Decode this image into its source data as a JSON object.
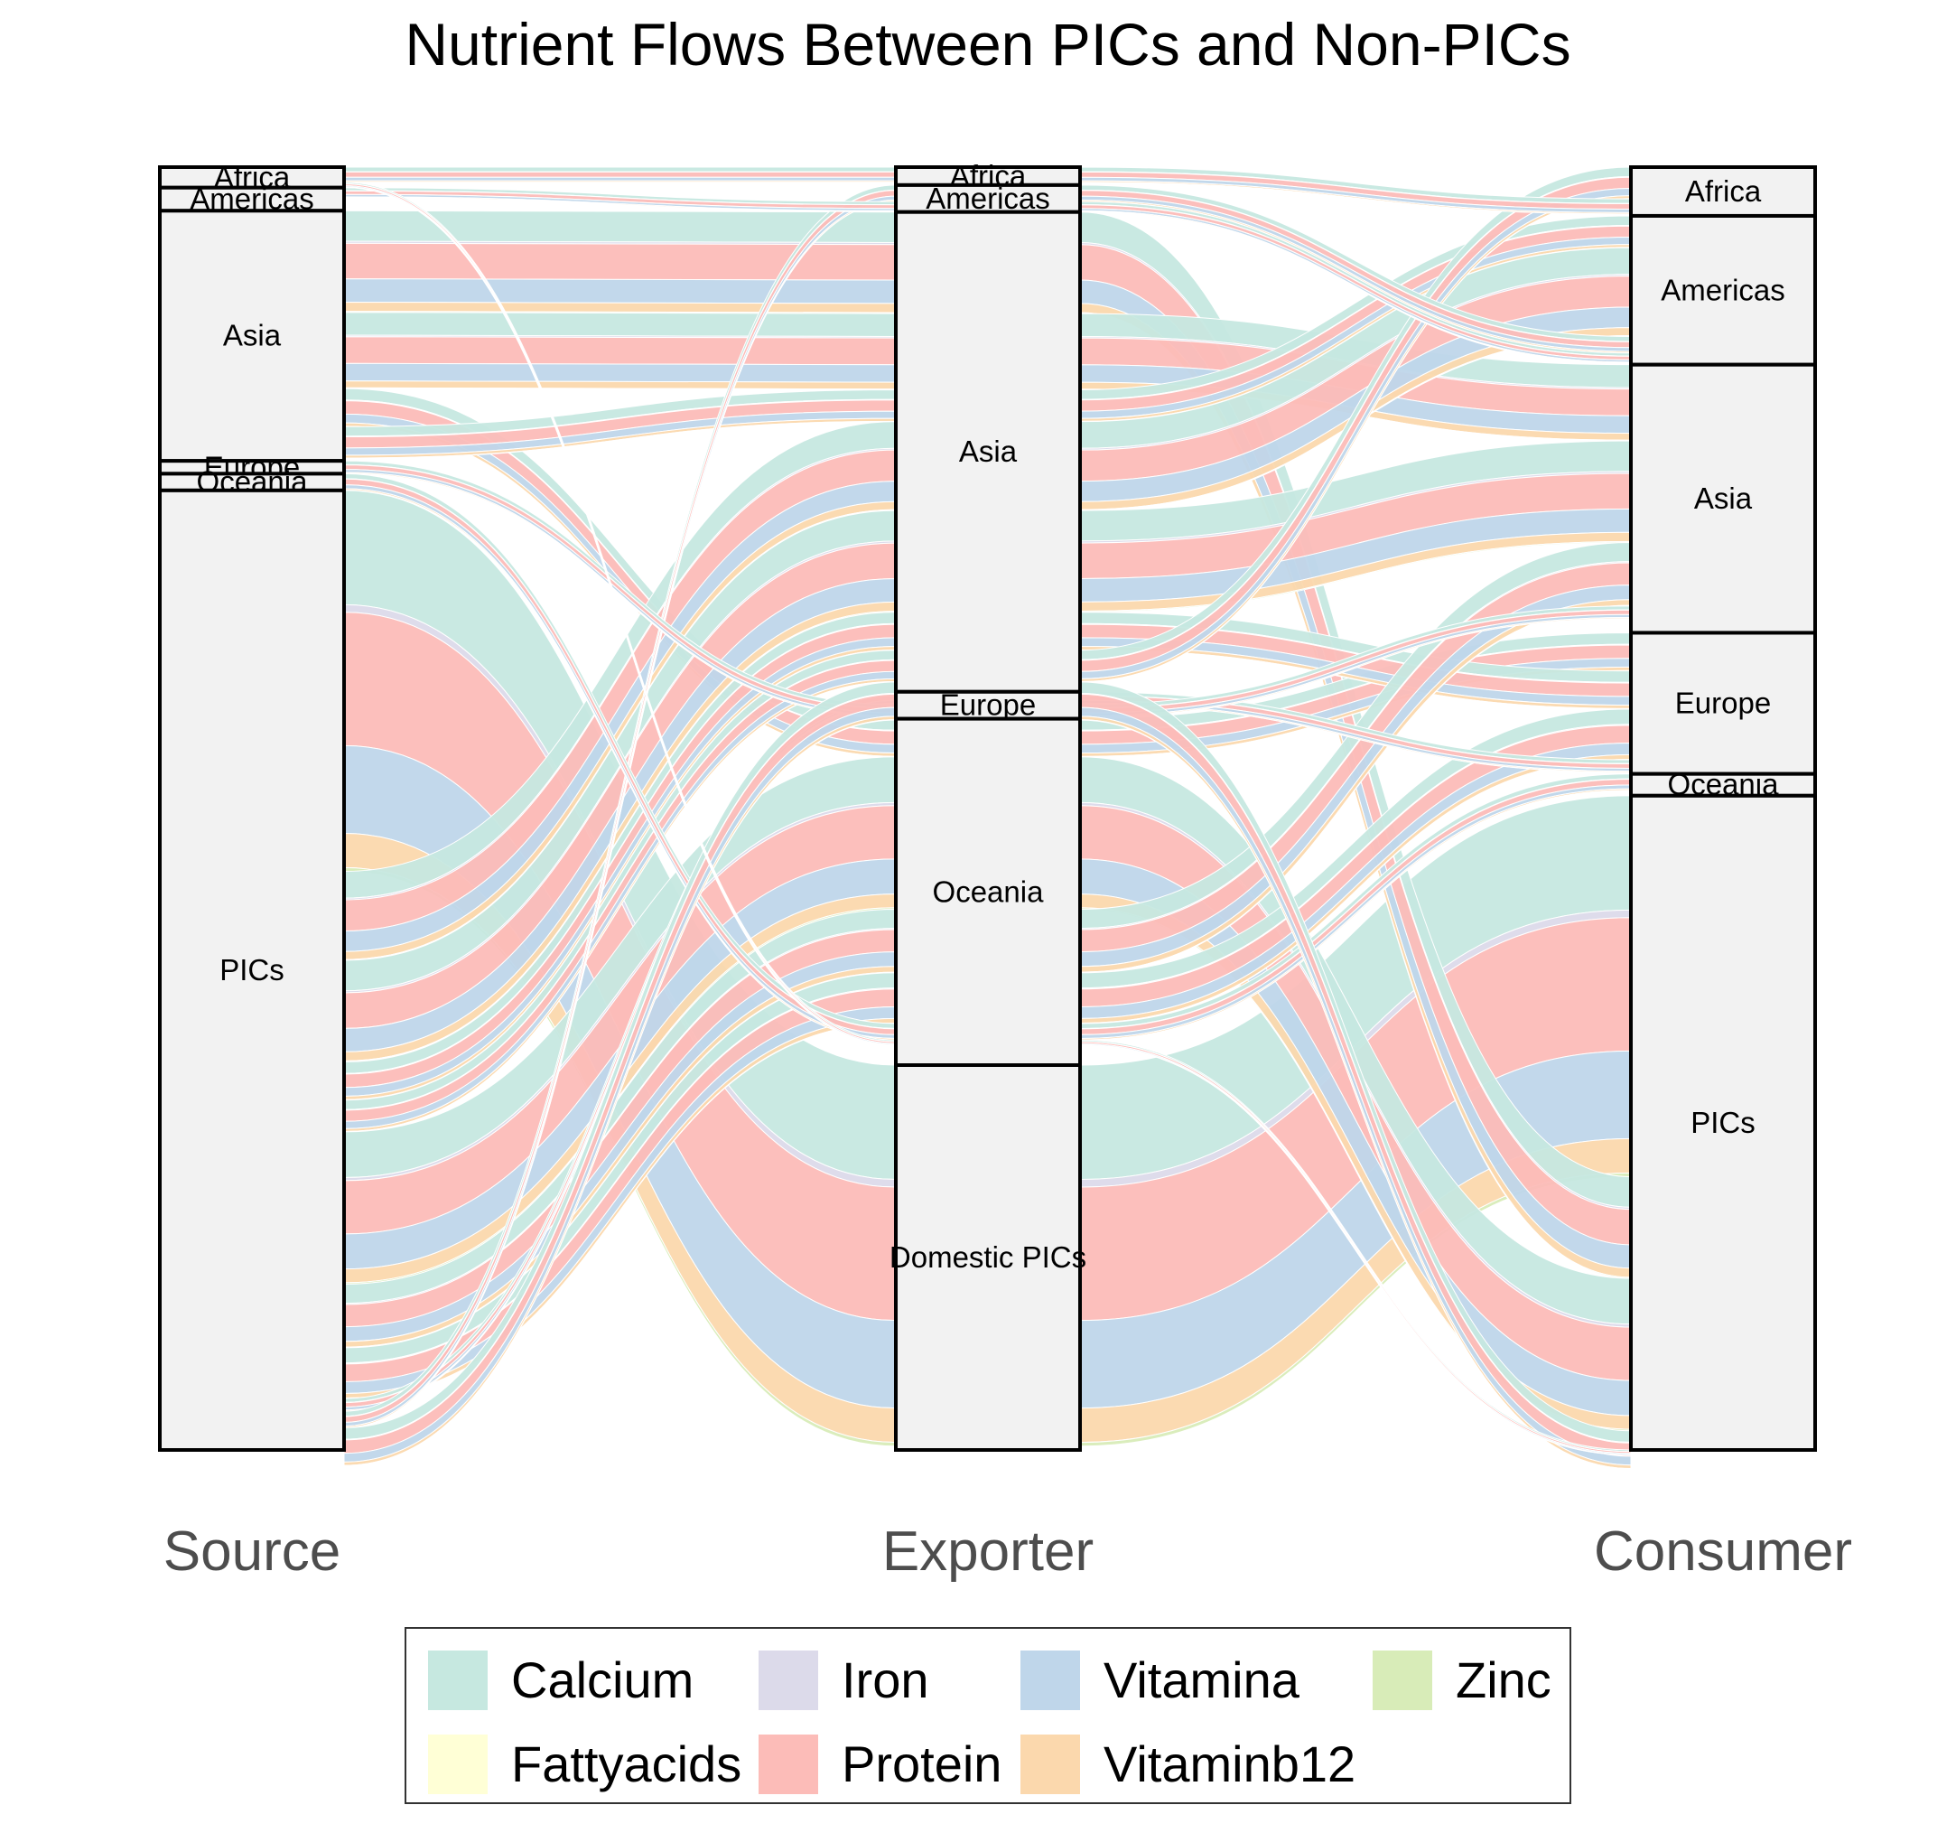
{
  "chart_data": {
    "type": "alluvial",
    "title": "Nutrient Flows Between PICs and Non-PICs",
    "axes": [
      "Source",
      "Exporter",
      "Consumer"
    ],
    "nutrients": [
      "Calcium",
      "Fattyacids",
      "Iron",
      "Protein",
      "Vitamina",
      "Vitaminb12",
      "Zinc"
    ],
    "colors": {
      "Calcium": "#c6e8e0",
      "Fattyacids": "#ffffd6",
      "Iron": "#dcdaea",
      "Protein": "#fcbcb8",
      "Vitamina": "#bfd6ea",
      "Vitaminb12": "#fbd8ad",
      "Zinc": "#d8ecb8"
    },
    "stratum_shares": {
      "Source": [
        {
          "label": "Africa",
          "share": 0.016
        },
        {
          "label": "Americas",
          "share": 0.018
        },
        {
          "label": "Asia",
          "share": 0.195
        },
        {
          "label": "Europe",
          "share": 0.01
        },
        {
          "label": "Oceania",
          "share": 0.013
        },
        {
          "label": "PICs",
          "share": 0.748
        }
      ],
      "Exporter": [
        {
          "label": "Africa",
          "share": 0.014
        },
        {
          "label": "Americas",
          "share": 0.021
        },
        {
          "label": "Asia",
          "share": 0.374
        },
        {
          "label": "Europe",
          "share": 0.021
        },
        {
          "label": "Oceania",
          "share": 0.27
        },
        {
          "label": "Domestic PICs",
          "share": 0.3
        }
      ],
      "Consumer": [
        {
          "label": "Africa",
          "share": 0.038
        },
        {
          "label": "Americas",
          "share": 0.116
        },
        {
          "label": "Asia",
          "share": 0.209
        },
        {
          "label": "Europe",
          "share": 0.11
        },
        {
          "label": "Oceania",
          "share": 0.017
        },
        {
          "label": "PICs",
          "share": 0.51
        }
      ]
    },
    "flow_shares": [
      {
        "source": "PICs",
        "exporter": "Domestic PICs",
        "consumer": "PICs",
        "share": 0.3
      },
      {
        "source": "Asia",
        "exporter": "Asia",
        "consumer": "PICs",
        "share": 0.08
      },
      {
        "source": "Asia",
        "exporter": "Asia",
        "consumer": "Asia",
        "share": 0.06
      },
      {
        "source": "Asia",
        "exporter": "Oceania",
        "consumer": "Europe",
        "share": 0.03
      },
      {
        "source": "Asia",
        "exporter": "Asia",
        "consumer": "Americas",
        "share": 0.025
      },
      {
        "source": "PICs",
        "exporter": "Asia",
        "consumer": "Americas",
        "share": 0.07
      },
      {
        "source": "PICs",
        "exporter": "Asia",
        "consumer": "Asia",
        "share": 0.08
      },
      {
        "source": "PICs",
        "exporter": "Asia",
        "consumer": "Europe",
        "share": 0.03
      },
      {
        "source": "PICs",
        "exporter": "Asia",
        "consumer": "Africa",
        "share": 0.025
      },
      {
        "source": "PICs",
        "exporter": "Oceania",
        "consumer": "PICs",
        "share": 0.12
      },
      {
        "source": "PICs",
        "exporter": "Oceania",
        "consumer": "Asia",
        "share": 0.05
      },
      {
        "source": "PICs",
        "exporter": "Oceania",
        "consumer": "Europe",
        "share": 0.04
      },
      {
        "source": "PICs",
        "exporter": "Europe",
        "consumer": "Europe",
        "share": 0.01
      },
      {
        "source": "PICs",
        "exporter": "Americas",
        "consumer": "Americas",
        "share": 0.013
      },
      {
        "source": "Africa",
        "exporter": "Africa",
        "consumer": "Africa",
        "share": 0.012
      },
      {
        "source": "Americas",
        "exporter": "Americas",
        "consumer": "Americas",
        "share": 0.008
      },
      {
        "source": "Europe",
        "exporter": "Europe",
        "consumer": "Asia",
        "share": 0.01
      },
      {
        "source": "Oceania",
        "exporter": "Oceania",
        "consumer": "Oceania",
        "share": 0.013
      },
      {
        "source": "PICs",
        "exporter": "Asia",
        "consumer": "PICs",
        "share": 0.03
      },
      {
        "source": "Africa",
        "exporter": "Oceania",
        "consumer": "PICs",
        "share": 0.004
      }
    ],
    "nutrient_mix": [
      {
        "name": "Calcium",
        "share": 0.3
      },
      {
        "name": "Iron",
        "share": 0.02
      },
      {
        "name": "Protein",
        "share": 0.35
      },
      {
        "name": "Vitamina",
        "share": 0.23
      },
      {
        "name": "Vitaminb12",
        "share": 0.09
      },
      {
        "name": "Zinc",
        "share": 0.01
      }
    ],
    "legend": {
      "position": "bottom",
      "rows": [
        [
          "Calcium",
          "Iron",
          "Vitamina",
          "Zinc"
        ],
        [
          "Fattyacids",
          "Protein",
          "Vitaminb12"
        ]
      ]
    }
  }
}
